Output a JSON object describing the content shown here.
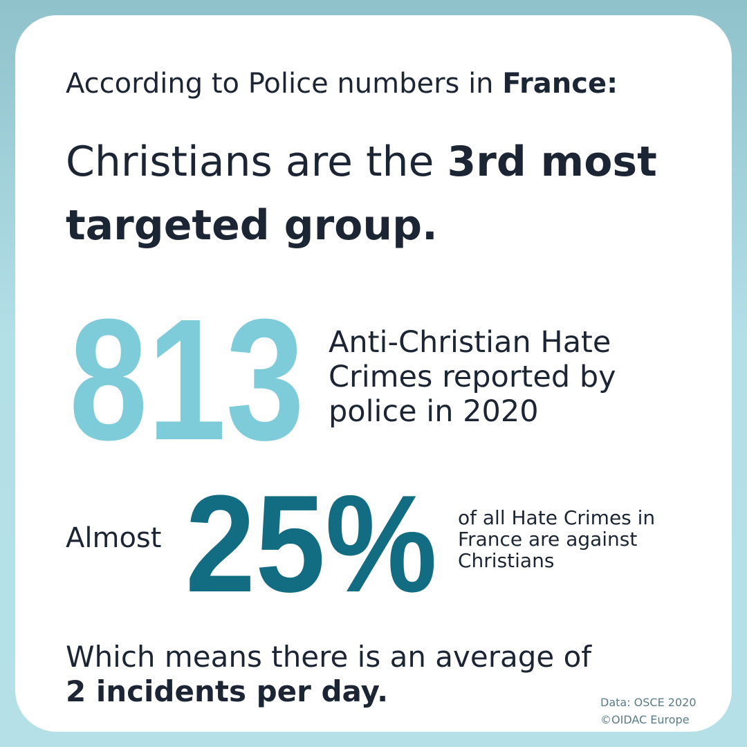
{
  "header": {
    "prefix": "According to Police numbers in",
    "emphasis": "France:"
  },
  "headline": {
    "prefix": "Christians are the",
    "emphasis": "3rd most targeted group."
  },
  "stats": [
    {
      "number": "813",
      "description": "Anti-Christian Hate Crimes reported by police in 2020"
    },
    {
      "lead": "Almost",
      "number": "25%",
      "description": "of all Hate Crimes in France are against Christians"
    }
  ],
  "conclusion": {
    "text": "Which means there is an average of",
    "emphasis": "2 incidents per day."
  },
  "source": {
    "data": "Data: OSCE 2020",
    "credit": "©OIDAC Europe"
  }
}
